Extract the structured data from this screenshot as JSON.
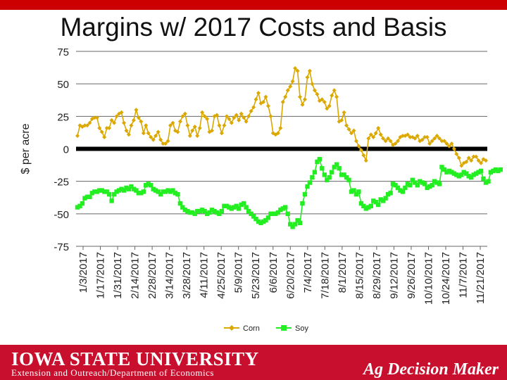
{
  "slide": {
    "title": "Margins w/ 2017 Costs and Basis"
  },
  "footer": {
    "university": "Iowa State University",
    "department": "Extension and Outreach/Department of Economics",
    "brand": "Ag Decision Maker"
  },
  "colors": {
    "corn": "#dba800",
    "soy": "#22ee22",
    "grid": "#666666",
    "zero_line": "#000000",
    "footer": "#c8102e"
  },
  "chart_data": {
    "type": "line",
    "ylabel": "$ per acre",
    "ylim": [
      -75,
      75
    ],
    "yticks": [
      75,
      50,
      25,
      0,
      -25,
      -50,
      -75
    ],
    "x_tick_labels": [
      "1/3/2017",
      "1/17/2017",
      "1/31/2017",
      "2/14/2017",
      "2/28/2017",
      "3/14/2017",
      "3/28/2017",
      "4/11/2017",
      "4/25/2017",
      "5/9/2017",
      "5/23/2017",
      "6/6/2017",
      "6/20/2017",
      "7/4/2017",
      "7/18/2017",
      "8/1/2017",
      "8/15/2017",
      "8/29/2017",
      "9/12/2017",
      "9/26/2017",
      "10/10/2017",
      "10/24/2017",
      "11/7/2017",
      "11/21/2017"
    ],
    "grid": true,
    "legend_position": "bottom",
    "series": [
      {
        "name": "Corn",
        "color": "#dba800",
        "values": [
          10,
          18,
          17,
          18,
          18,
          20,
          23,
          24,
          24,
          16,
          13,
          9,
          16,
          16,
          22,
          20,
          25,
          27,
          28,
          20,
          14,
          11,
          18,
          22,
          30,
          24,
          21,
          12,
          18,
          12,
          9,
          7,
          10,
          13,
          7,
          4,
          4,
          6,
          18,
          20,
          14,
          13,
          21,
          25,
          27,
          18,
          10,
          14,
          17,
          10,
          16,
          28,
          25,
          23,
          13,
          14,
          25,
          26,
          18,
          12,
          18,
          25,
          23,
          20,
          24,
          26,
          22,
          27,
          24,
          21,
          25,
          29,
          32,
          38,
          43,
          35,
          36,
          40,
          33,
          25,
          12,
          11,
          12,
          16,
          36,
          40,
          45,
          48,
          52,
          62,
          60,
          40,
          34,
          38,
          55,
          60,
          50,
          45,
          42,
          37,
          38,
          36,
          31,
          33,
          41,
          45,
          40,
          21,
          22,
          28,
          18,
          15,
          12,
          14,
          6,
          2,
          -1,
          -5,
          -9,
          8,
          11,
          9,
          12,
          16,
          11,
          8,
          6,
          8,
          6,
          3,
          4,
          6,
          9,
          10,
          10,
          11,
          9,
          9,
          8,
          10,
          6,
          7,
          9,
          9,
          4,
          6,
          8,
          10,
          8,
          6,
          6,
          4,
          2,
          4,
          0,
          -4,
          -7,
          -13,
          -11,
          -10,
          -7,
          -9,
          -6,
          -6,
          -9,
          -11,
          -8,
          -9
        ]
      },
      {
        "name": "Soy",
        "color": "#22ee22",
        "values": [
          -45,
          -44,
          -42,
          -38,
          -37,
          -37,
          -34,
          -33,
          -33,
          -32,
          -32,
          -33,
          -33,
          -35,
          -40,
          -35,
          -33,
          -32,
          -31,
          -32,
          -30,
          -31,
          -29,
          -31,
          -32,
          -34,
          -34,
          -33,
          -28,
          -27,
          -28,
          -31,
          -32,
          -33,
          -35,
          -33,
          -33,
          -32,
          -33,
          -32,
          -34,
          -35,
          -42,
          -45,
          -47,
          -48,
          -49,
          -49,
          -50,
          -48,
          -48,
          -47,
          -48,
          -50,
          -49,
          -47,
          -48,
          -49,
          -50,
          -48,
          -44,
          -44,
          -45,
          -46,
          -45,
          -44,
          -46,
          -43,
          -42,
          -45,
          -48,
          -50,
          -52,
          -54,
          -56,
          -57,
          -56,
          -55,
          -53,
          -50,
          -50,
          -50,
          -49,
          -47,
          -46,
          -45,
          -50,
          -58,
          -60,
          -58,
          -55,
          -57,
          -42,
          -35,
          -29,
          -26,
          -22,
          -18,
          -10,
          -8,
          -15,
          -20,
          -24,
          -22,
          -18,
          -14,
          -12,
          -15,
          -20,
          -20,
          -22,
          -24,
          -33,
          -32,
          -35,
          -33,
          -42,
          -44,
          -46,
          -45,
          -44,
          -40,
          -41,
          -43,
          -39,
          -40,
          -38,
          -35,
          -34,
          -27,
          -28,
          -30,
          -32,
          -33,
          -30,
          -27,
          -28,
          -24,
          -26,
          -28,
          -25,
          -26,
          -27,
          -30,
          -29,
          -28,
          -25,
          -26,
          -27,
          -14,
          -16,
          -18,
          -17,
          -18,
          -19,
          -20,
          -21,
          -20,
          -18,
          -19,
          -21,
          -22,
          -20,
          -19,
          -18,
          -17,
          -23,
          -26,
          -25,
          -18,
          -17,
          -16,
          -17,
          -16
        ]
      }
    ]
  }
}
